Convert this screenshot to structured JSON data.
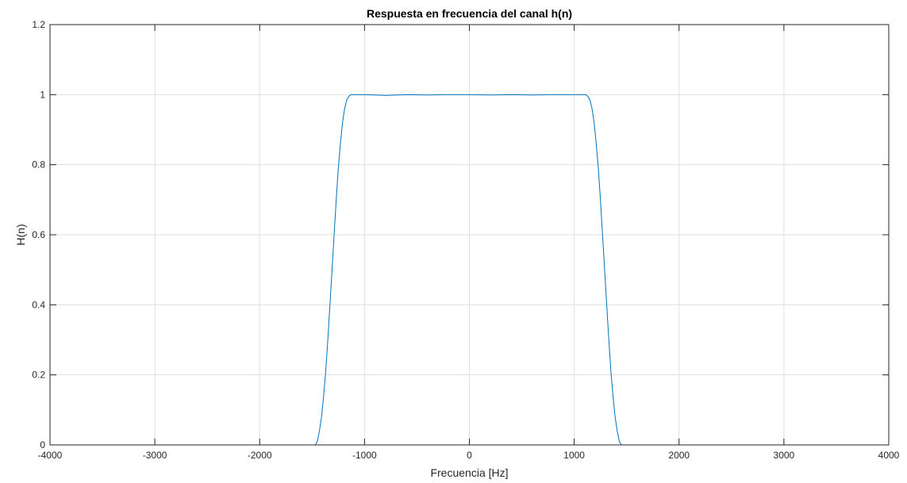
{
  "chart_data": {
    "type": "line",
    "title": "Respuesta en frecuencia del canal h(n)",
    "xlabel": "Frecuencia [Hz]",
    "ylabel": "H(n)",
    "xlim": [
      -4000,
      4000
    ],
    "ylim": [
      0,
      1.2
    ],
    "x_ticks": [
      -4000,
      -3000,
      -2000,
      -1000,
      0,
      1000,
      2000,
      3000,
      4000
    ],
    "x_tick_labels": [
      "-4000",
      "-3000",
      "-2000",
      "-1000",
      "0",
      "1000",
      "2000",
      "3000",
      "4000"
    ],
    "y_ticks": [
      0,
      0.2,
      0.4,
      0.6,
      0.8,
      1,
      1.2
    ],
    "y_tick_labels": [
      "0",
      "0.2",
      "0.4",
      "0.6",
      "0.8",
      "1",
      "1.2"
    ],
    "grid": true,
    "legend": "none",
    "series": [
      {
        "color": "#0072BD",
        "x": [
          -4000,
          -1500,
          -1470,
          -1450,
          -1430,
          -1410,
          -1390,
          -1370,
          -1350,
          -1330,
          -1310,
          -1290,
          -1270,
          -1250,
          -1230,
          -1210,
          -1190,
          -1170,
          -1150,
          -1130,
          -1110,
          -1000,
          -800,
          -600,
          -400,
          -200,
          0,
          200,
          400,
          600,
          800,
          1000,
          1110,
          1130,
          1150,
          1170,
          1190,
          1210,
          1230,
          1250,
          1270,
          1290,
          1310,
          1330,
          1350,
          1370,
          1390,
          1410,
          1430,
          1450,
          1470,
          1500,
          4000
        ],
        "y": [
          0,
          0,
          0.0,
          0.01,
          0.04,
          0.08,
          0.14,
          0.21,
          0.3,
          0.4,
          0.5,
          0.6,
          0.7,
          0.79,
          0.86,
          0.92,
          0.96,
          0.985,
          0.995,
          1.0,
          1.0,
          1.0,
          0.998,
          1.0,
          0.999,
          1.0,
          1.0,
          0.999,
          1.0,
          0.999,
          1.0,
          1.0,
          1.0,
          0.995,
          0.985,
          0.96,
          0.92,
          0.86,
          0.79,
          0.7,
          0.6,
          0.5,
          0.4,
          0.3,
          0.21,
          0.14,
          0.08,
          0.04,
          0.01,
          0.0,
          0.0,
          0,
          0
        ]
      }
    ]
  }
}
